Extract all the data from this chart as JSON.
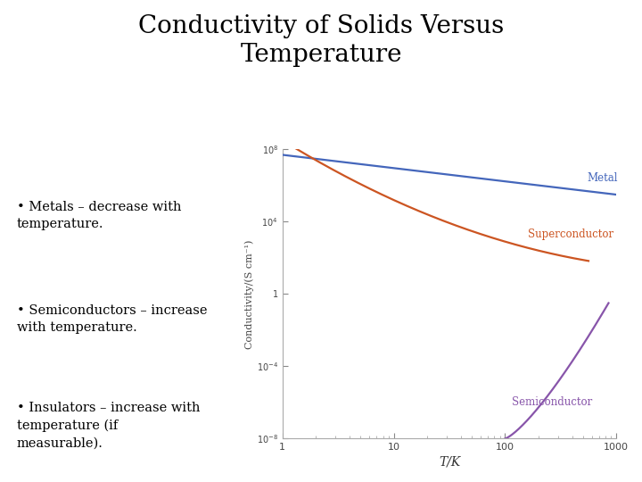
{
  "title_line1": "Conductivity of Solids Versus",
  "title_line2": "Temperature",
  "title_fontsize": 20,
  "title_color": "#000000",
  "bg_color": "#ffffff",
  "bullet_texts": [
    "Metals – decrease with\ntemperature.",
    "Semiconductors – increase\nwith temperature.",
    "Insulators – increase with\ntemperature (if\nmeasurable)."
  ],
  "bullet_fontsize": 10.5,
  "ylabel": "Conductivity/(S cm⁻¹)",
  "xlabel": "T/K",
  "metal_color": "#4466bb",
  "superconductor_color": "#cc5522",
  "semiconductor_color": "#8855aa",
  "label_metal": "Metal",
  "label_superconductor": "Superconductor",
  "label_semiconductor": "Semiconductor",
  "ytick_positions": [
    1e-08,
    0.0001,
    1,
    10000.0,
    100000000.0
  ],
  "ytick_labels": [
    "$10^{-8}$",
    "$10^{-4}$",
    "1",
    "$10^{4}$",
    "$10^{8}$"
  ],
  "xtick_positions": [
    1,
    10,
    100,
    1000
  ],
  "xtick_labels": [
    "1",
    "10",
    "100",
    "1000"
  ]
}
